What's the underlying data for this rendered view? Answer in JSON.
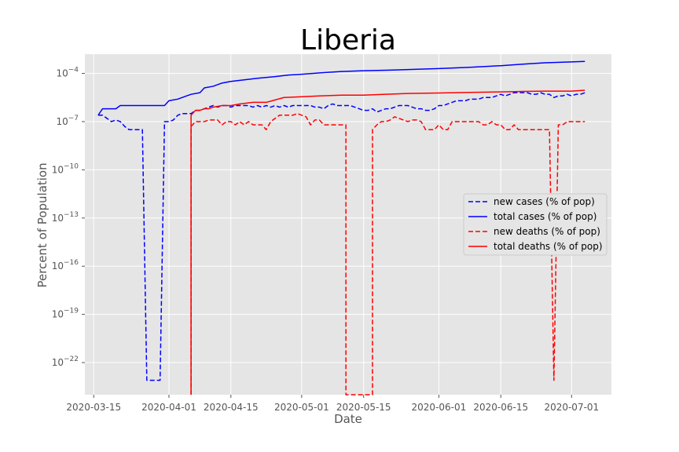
{
  "chart_data": {
    "type": "line",
    "title": "Liberia",
    "xlabel": "Date",
    "ylabel": "Percent of Population",
    "yscale": "log",
    "ylim_log10": [
      -24,
      -2.8
    ],
    "xlim": [
      "2020-03-15",
      "2020-07-10"
    ],
    "grid": true,
    "legend_position": "center-right",
    "x_ticks": [
      "2020-03-15",
      "2020-04-01",
      "2020-04-15",
      "2020-05-01",
      "2020-05-15",
      "2020-06-01",
      "2020-06-15",
      "2020-07-01"
    ],
    "y_ticks": [
      {
        "exp": -4,
        "label": "10",
        "sup": "−4"
      },
      {
        "exp": -7,
        "label": "10",
        "sup": "−7"
      },
      {
        "exp": -10,
        "label": "10",
        "sup": "−10"
      },
      {
        "exp": -13,
        "label": "10",
        "sup": "−13"
      },
      {
        "exp": -16,
        "label": "10",
        "sup": "−16"
      },
      {
        "exp": -19,
        "label": "10",
        "sup": "−19"
      },
      {
        "exp": -22,
        "label": "10",
        "sup": "−22"
      }
    ],
    "series": [
      {
        "name": "new cases (% of pop)",
        "color": "#0000ff",
        "style": "dashed",
        "points": [
          [
            "2020-03-16",
            -6.6
          ],
          [
            "2020-03-17",
            -6.6
          ],
          [
            "2020-03-18",
            -6.8
          ],
          [
            "2020-03-19",
            -7.0
          ],
          [
            "2020-03-20",
            -6.9
          ],
          [
            "2020-03-21",
            -7.0
          ],
          [
            "2020-03-22",
            -7.3
          ],
          [
            "2020-03-23",
            -7.5
          ],
          [
            "2020-03-24",
            -7.5
          ],
          [
            "2020-03-25",
            -7.5
          ],
          [
            "2020-03-26",
            -7.5
          ],
          [
            "2020-03-27",
            -23.1
          ],
          [
            "2020-03-28",
            -23.1
          ],
          [
            "2020-03-29",
            -23.1
          ],
          [
            "2020-03-30",
            -23.1
          ],
          [
            "2020-03-31",
            -7.0
          ],
          [
            "2020-04-01",
            -7.0
          ],
          [
            "2020-04-02",
            -6.9
          ],
          [
            "2020-04-03",
            -6.6
          ],
          [
            "2020-04-04",
            -6.5
          ],
          [
            "2020-04-05",
            -6.5
          ],
          [
            "2020-04-06",
            -6.5
          ],
          [
            "2020-04-07",
            -6.3
          ],
          [
            "2020-04-08",
            -6.3
          ],
          [
            "2020-04-09",
            -6.2
          ],
          [
            "2020-04-10",
            -6.1
          ],
          [
            "2020-04-11",
            -6.0
          ],
          [
            "2020-04-12",
            -6.1
          ],
          [
            "2020-04-13",
            -6.0
          ],
          [
            "2020-04-14",
            -6.0
          ],
          [
            "2020-04-15",
            -6.1
          ],
          [
            "2020-04-16",
            -6.0
          ],
          [
            "2020-04-17",
            -6.0
          ],
          [
            "2020-04-18",
            -6.0
          ],
          [
            "2020-04-19",
            -6.0
          ],
          [
            "2020-04-20",
            -6.1
          ],
          [
            "2020-04-21",
            -6.0
          ],
          [
            "2020-04-22",
            -6.1
          ],
          [
            "2020-04-23",
            -6.0
          ],
          [
            "2020-04-24",
            -6.1
          ],
          [
            "2020-04-25",
            -6.0
          ],
          [
            "2020-04-26",
            -6.1
          ],
          [
            "2020-04-27",
            -6.0
          ],
          [
            "2020-04-28",
            -6.1
          ],
          [
            "2020-04-29",
            -6.0
          ],
          [
            "2020-04-30",
            -6.0
          ],
          [
            "2020-05-01",
            -6.0
          ],
          [
            "2020-05-02",
            -6.0
          ],
          [
            "2020-05-03",
            -6.0
          ],
          [
            "2020-05-04",
            -6.1
          ],
          [
            "2020-05-05",
            -6.1
          ],
          [
            "2020-05-06",
            -6.2
          ],
          [
            "2020-05-07",
            -6.0
          ],
          [
            "2020-05-08",
            -5.9
          ],
          [
            "2020-05-09",
            -6.0
          ],
          [
            "2020-05-10",
            -6.0
          ],
          [
            "2020-05-11",
            -6.0
          ],
          [
            "2020-05-12",
            -6.0
          ],
          [
            "2020-05-13",
            -6.1
          ],
          [
            "2020-05-14",
            -6.2
          ],
          [
            "2020-05-15",
            -6.3
          ],
          [
            "2020-05-16",
            -6.3
          ],
          [
            "2020-05-17",
            -6.2
          ],
          [
            "2020-05-18",
            -6.4
          ],
          [
            "2020-05-19",
            -6.3
          ],
          [
            "2020-05-20",
            -6.2
          ],
          [
            "2020-05-21",
            -6.2
          ],
          [
            "2020-05-22",
            -6.1
          ],
          [
            "2020-05-23",
            -6.0
          ],
          [
            "2020-05-24",
            -6.0
          ],
          [
            "2020-05-25",
            -6.0
          ],
          [
            "2020-05-26",
            -6.1
          ],
          [
            "2020-05-27",
            -6.2
          ],
          [
            "2020-05-28",
            -6.2
          ],
          [
            "2020-05-29",
            -6.3
          ],
          [
            "2020-05-30",
            -6.3
          ],
          [
            "2020-05-31",
            -6.2
          ],
          [
            "2020-06-01",
            -6.0
          ],
          [
            "2020-06-02",
            -6.0
          ],
          [
            "2020-06-03",
            -5.9
          ],
          [
            "2020-06-04",
            -5.8
          ],
          [
            "2020-06-05",
            -5.7
          ],
          [
            "2020-06-06",
            -5.7
          ],
          [
            "2020-06-07",
            -5.7
          ],
          [
            "2020-06-08",
            -5.6
          ],
          [
            "2020-06-09",
            -5.6
          ],
          [
            "2020-06-10",
            -5.6
          ],
          [
            "2020-06-11",
            -5.5
          ],
          [
            "2020-06-12",
            -5.5
          ],
          [
            "2020-06-13",
            -5.5
          ],
          [
            "2020-06-14",
            -5.4
          ],
          [
            "2020-06-15",
            -5.3
          ],
          [
            "2020-06-16",
            -5.4
          ],
          [
            "2020-06-17",
            -5.3
          ],
          [
            "2020-06-18",
            -5.2
          ],
          [
            "2020-06-19",
            -5.2
          ],
          [
            "2020-06-20",
            -5.2
          ],
          [
            "2020-06-21",
            -5.2
          ],
          [
            "2020-06-22",
            -5.3
          ],
          [
            "2020-06-23",
            -5.3
          ],
          [
            "2020-06-24",
            -5.2
          ],
          [
            "2020-06-25",
            -5.3
          ],
          [
            "2020-06-26",
            -5.3
          ],
          [
            "2020-06-27",
            -5.5
          ],
          [
            "2020-06-28",
            -5.4
          ],
          [
            "2020-06-29",
            -5.4
          ],
          [
            "2020-06-30",
            -5.3
          ],
          [
            "2020-07-01",
            -5.4
          ],
          [
            "2020-07-02",
            -5.3
          ],
          [
            "2020-07-03",
            -5.3
          ],
          [
            "2020-07-04",
            -5.2
          ]
        ]
      },
      {
        "name": "total cases (% of pop)",
        "color": "#0000ff",
        "style": "solid",
        "points": [
          [
            "2020-03-16",
            -6.6
          ],
          [
            "2020-03-17",
            -6.2
          ],
          [
            "2020-03-20",
            -6.2
          ],
          [
            "2020-03-21",
            -6.0
          ],
          [
            "2020-03-31",
            -6.0
          ],
          [
            "2020-04-01",
            -5.7
          ],
          [
            "2020-04-03",
            -5.6
          ],
          [
            "2020-04-05",
            -5.4
          ],
          [
            "2020-04-06",
            -5.3
          ],
          [
            "2020-04-08",
            -5.2
          ],
          [
            "2020-04-09",
            -4.9
          ],
          [
            "2020-04-11",
            -4.8
          ],
          [
            "2020-04-13",
            -4.6
          ],
          [
            "2020-04-15",
            -4.5
          ],
          [
            "2020-04-18",
            -4.4
          ],
          [
            "2020-04-21",
            -4.3
          ],
          [
            "2020-04-25",
            -4.2
          ],
          [
            "2020-04-28",
            -4.1
          ],
          [
            "2020-05-01",
            -4.05
          ],
          [
            "2020-05-06",
            -3.95
          ],
          [
            "2020-05-10",
            -3.88
          ],
          [
            "2020-05-15",
            -3.83
          ],
          [
            "2020-05-20",
            -3.8
          ],
          [
            "2020-05-25",
            -3.76
          ],
          [
            "2020-06-01",
            -3.7
          ],
          [
            "2020-06-08",
            -3.62
          ],
          [
            "2020-06-15",
            -3.52
          ],
          [
            "2020-06-20",
            -3.42
          ],
          [
            "2020-06-25",
            -3.34
          ],
          [
            "2020-07-01",
            -3.28
          ],
          [
            "2020-07-04",
            -3.25
          ]
        ]
      },
      {
        "name": "new deaths (% of pop)",
        "color": "#ff0000",
        "style": "dashed",
        "points": [
          [
            "2020-04-06",
            -24.0
          ],
          [
            "2020-04-06",
            -7.3
          ],
          [
            "2020-04-07",
            -7.0
          ],
          [
            "2020-04-08",
            -7.0
          ],
          [
            "2020-04-09",
            -7.0
          ],
          [
            "2020-04-10",
            -6.9
          ],
          [
            "2020-04-12",
            -6.9
          ],
          [
            "2020-04-13",
            -7.2
          ],
          [
            "2020-04-14",
            -7.0
          ],
          [
            "2020-04-15",
            -7.0
          ],
          [
            "2020-04-16",
            -7.2
          ],
          [
            "2020-04-17",
            -7.0
          ],
          [
            "2020-04-18",
            -7.2
          ],
          [
            "2020-04-19",
            -7.0
          ],
          [
            "2020-04-20",
            -7.2
          ],
          [
            "2020-04-22",
            -7.2
          ],
          [
            "2020-04-23",
            -7.5
          ],
          [
            "2020-04-24",
            -7.0
          ],
          [
            "2020-04-26",
            -6.6
          ],
          [
            "2020-04-27",
            -6.6
          ],
          [
            "2020-04-29",
            -6.6
          ],
          [
            "2020-04-30",
            -6.5
          ],
          [
            "2020-05-01",
            -6.6
          ],
          [
            "2020-05-02",
            -6.7
          ],
          [
            "2020-05-03",
            -7.2
          ],
          [
            "2020-05-04",
            -6.9
          ],
          [
            "2020-05-05",
            -6.9
          ],
          [
            "2020-05-06",
            -7.2
          ],
          [
            "2020-05-11",
            -7.2
          ],
          [
            "2020-05-11",
            -24.0
          ],
          [
            "2020-05-17",
            -24.0
          ],
          [
            "2020-05-17",
            -7.5
          ],
          [
            "2020-05-18",
            -7.2
          ],
          [
            "2020-05-19",
            -7.0
          ],
          [
            "2020-05-20",
            -7.0
          ],
          [
            "2020-05-21",
            -6.9
          ],
          [
            "2020-05-22",
            -6.7
          ],
          [
            "2020-05-23",
            -6.8
          ],
          [
            "2020-05-24",
            -6.9
          ],
          [
            "2020-05-25",
            -7.0
          ],
          [
            "2020-05-26",
            -6.9
          ],
          [
            "2020-05-27",
            -6.9
          ],
          [
            "2020-05-28",
            -7.0
          ],
          [
            "2020-05-29",
            -7.5
          ],
          [
            "2020-05-30",
            -7.5
          ],
          [
            "2020-05-31",
            -7.5
          ],
          [
            "2020-06-01",
            -7.2
          ],
          [
            "2020-06-02",
            -7.5
          ],
          [
            "2020-06-03",
            -7.5
          ],
          [
            "2020-06-04",
            -7.0
          ],
          [
            "2020-06-05",
            -7.0
          ],
          [
            "2020-06-10",
            -7.0
          ],
          [
            "2020-06-11",
            -7.2
          ],
          [
            "2020-06-12",
            -7.2
          ],
          [
            "2020-06-13",
            -7.0
          ],
          [
            "2020-06-14",
            -7.2
          ],
          [
            "2020-06-15",
            -7.2
          ],
          [
            "2020-06-16",
            -7.5
          ],
          [
            "2020-06-17",
            -7.5
          ],
          [
            "2020-06-18",
            -7.2
          ],
          [
            "2020-06-19",
            -7.5
          ],
          [
            "2020-06-20",
            -7.5
          ],
          [
            "2020-06-26",
            -7.5
          ],
          [
            "2020-06-27",
            -23.1
          ],
          [
            "2020-06-28",
            -7.2
          ],
          [
            "2020-06-29",
            -7.2
          ],
          [
            "2020-06-30",
            -7.0
          ],
          [
            "2020-07-01",
            -7.0
          ],
          [
            "2020-07-02",
            -7.0
          ],
          [
            "2020-07-04",
            -7.0
          ]
        ]
      },
      {
        "name": "total deaths (% of pop)",
        "color": "#ff0000",
        "style": "solid",
        "points": [
          [
            "2020-04-06",
            -24.0
          ],
          [
            "2020-04-06",
            -6.6
          ],
          [
            "2020-04-07",
            -6.3
          ],
          [
            "2020-04-08",
            -6.3
          ],
          [
            "2020-04-09",
            -6.2
          ],
          [
            "2020-04-10",
            -6.2
          ],
          [
            "2020-04-11",
            -6.1
          ],
          [
            "2020-04-13",
            -6.0
          ],
          [
            "2020-04-15",
            -6.0
          ],
          [
            "2020-04-17",
            -5.9
          ],
          [
            "2020-04-20",
            -5.8
          ],
          [
            "2020-04-23",
            -5.8
          ],
          [
            "2020-04-25",
            -5.65
          ],
          [
            "2020-04-27",
            -5.5
          ],
          [
            "2020-05-01",
            -5.45
          ],
          [
            "2020-05-05",
            -5.4
          ],
          [
            "2020-05-10",
            -5.35
          ],
          [
            "2020-05-15",
            -5.35
          ],
          [
            "2020-05-20",
            -5.3
          ],
          [
            "2020-05-25",
            -5.25
          ],
          [
            "2020-06-01",
            -5.22
          ],
          [
            "2020-06-08",
            -5.18
          ],
          [
            "2020-06-15",
            -5.15
          ],
          [
            "2020-06-20",
            -5.12
          ],
          [
            "2020-06-25",
            -5.1
          ],
          [
            "2020-07-01",
            -5.1
          ],
          [
            "2020-07-04",
            -5.05
          ]
        ]
      }
    ]
  },
  "colors": {
    "plot_background": "#e5e5e5",
    "grid": "#ffffff",
    "tick_text": "#555555",
    "title_text": "#000000"
  }
}
